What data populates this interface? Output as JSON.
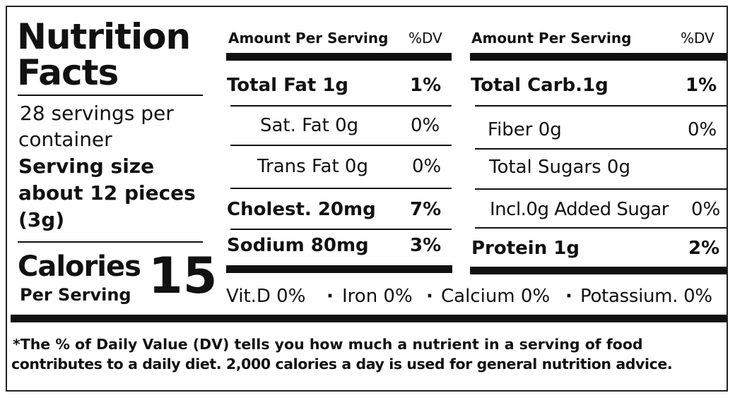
{
  "title_line1": "Nutrition",
  "title_line2": "Facts",
  "servings_line1": "28 servings per",
  "servings_line2": "container",
  "serving_size_line1": "Serving size",
  "serving_size_line2": "about 12 pieces",
  "serving_size_line3": "(3g)",
  "calories_label": "Calories",
  "calories_sub": "Per Serving",
  "calories_value": "15",
  "left_table": {
    "header_amount": "Amount Per Serving",
    "header_dv": "%DV",
    "rows": [
      {
        "label": "Total Fat 1g",
        "dv": "1%"
      },
      {
        "label": "Sat. Fat 0g",
        "dv": "0%"
      },
      {
        "label": "Trans Fat 0g",
        "dv": "0%"
      },
      {
        "label": "Cholest. 20mg",
        "dv": "7%"
      },
      {
        "label": "Sodium 80mg",
        "dv": "3%"
      }
    ]
  },
  "right_table": {
    "header_amount": "Amount Per Serving",
    "header_dv": "%DV",
    "rows": [
      {
        "label": "Total Carb.1g",
        "dv": "1%"
      },
      {
        "label": "Fiber 0g",
        "dv": "0%"
      },
      {
        "label": "Total Sugars  0g",
        "dv": ""
      },
      {
        "label": "Incl.0g Added Sugar",
        "dv": "0%"
      },
      {
        "label": "Protein 1g",
        "dv": "2%"
      }
    ]
  },
  "vitamins": [
    "Vit.D 0%",
    "Iron 0%",
    "Calcium 0%",
    "Potassium. 0%"
  ],
  "vitamin_separator": "·",
  "footnote_line1": "*The % of Daily Value (DV) tells you how much a nutrient in a serving of food",
  "footnote_line2": "contributes to a daily diet. 2,000 calories a day is used for general nutrition advice."
}
